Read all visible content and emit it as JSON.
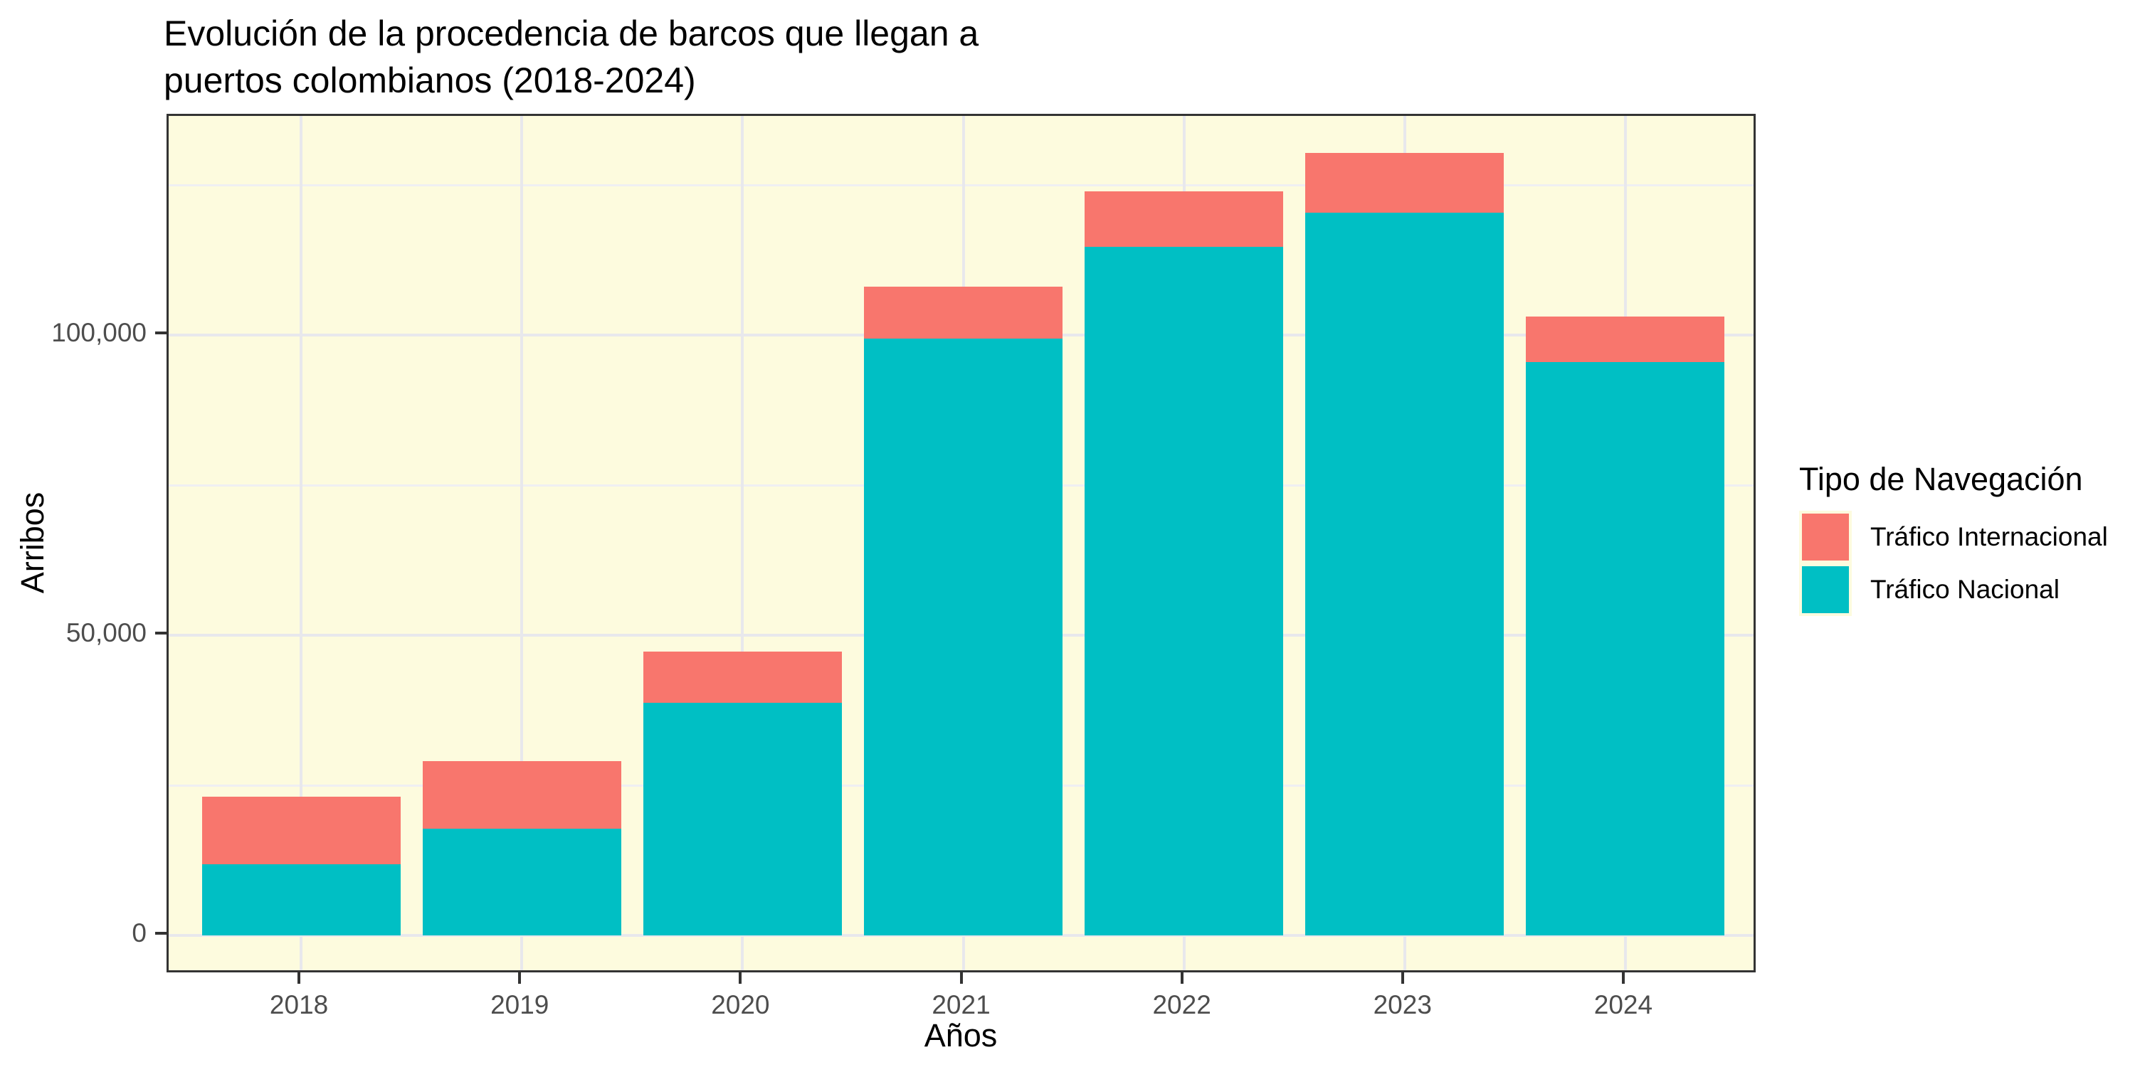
{
  "title": {
    "line1": "Evolución de la procedencia de barcos que llegan a",
    "line2": "puertos colombianos (2018-2024)"
  },
  "axes": {
    "x_title": "Años",
    "y_title": "Arribos",
    "x_tick_labels": [
      "2018",
      "2019",
      "2020",
      "2021",
      "2022",
      "2023",
      "2024"
    ],
    "y_tick_labels": [
      "0",
      "50,000",
      "100,000"
    ]
  },
  "legend": {
    "title": "Tipo de Navegación",
    "items": [
      {
        "label": "Tráfico Internacional",
        "color": "#F8766D"
      },
      {
        "label": "Tráfico Nacional",
        "color": "#00BFC4"
      }
    ]
  },
  "colors": {
    "internacional": "#F8766D",
    "nacional": "#00BFC4",
    "panel_background": "#FDFBDE",
    "grid_major": "#E8E8EC",
    "grid_minor": "#EFEFF2",
    "panel_border": "#333333",
    "axis_text": "#4D4D4D",
    "title_text": "#000000"
  },
  "chart_data": {
    "type": "bar",
    "stacked": true,
    "stack_order": "bottom-to-top",
    "title": "Evolución de la procedencia de barcos que llegan a puertos colombianos (2018-2024)",
    "xlabel": "Años",
    "ylabel": "Arribos",
    "categories": [
      "2018",
      "2019",
      "2020",
      "2021",
      "2022",
      "2023",
      "2024"
    ],
    "series": [
      {
        "key": "nacional",
        "name": "Tráfico Nacional",
        "color": "#00BFC4",
        "values": [
          11850,
          17800,
          38750,
          99400,
          114700,
          120400,
          95500
        ]
      },
      {
        "key": "internacional",
        "name": "Tráfico Internacional",
        "color": "#F8766D",
        "values": [
          11250,
          11230,
          8530,
          8670,
          9250,
          9950,
          7580
        ]
      }
    ],
    "totals": [
      23100,
      29030,
      47280,
      108070,
      123950,
      130350,
      103080
    ],
    "ylim": [
      -6500,
      136500
    ],
    "y_major_ticks": [
      {
        "value": 0,
        "label": "0"
      },
      {
        "value": 50000,
        "label": "50,000"
      },
      {
        "value": 100000,
        "label": "100,000"
      }
    ],
    "y_minor_ticks": [
      25000,
      75000,
      125000
    ],
    "grid": true,
    "legend_position": "right",
    "legend_title": "Tipo de Navegación"
  }
}
